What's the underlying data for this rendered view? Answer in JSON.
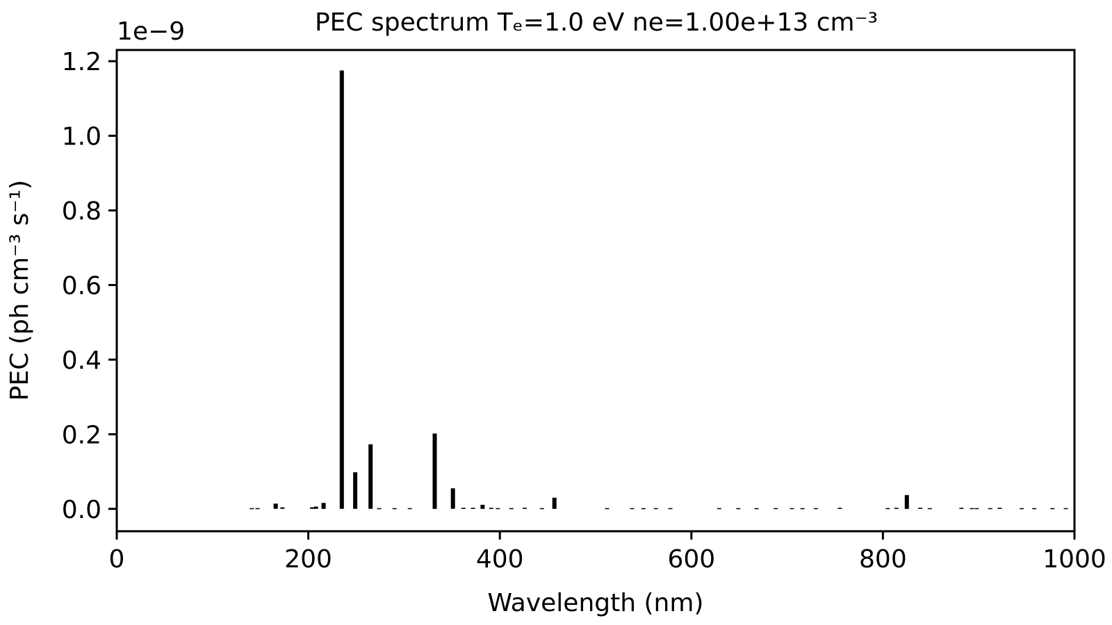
{
  "chart_data": {
    "type": "bar",
    "title": "PEC spectrum  Tₑ=1.0 eV  ne=1.00e+13 cm⁻³",
    "xlabel": "Wavelength (nm)",
    "ylabel": "PEC (ph cm⁻³ s⁻¹)",
    "offset_text": "1e−9",
    "xlim": [
      0,
      1000
    ],
    "ylim": [
      -0.06,
      1.23
    ],
    "x_ticks": [
      0,
      200,
      400,
      600,
      800,
      1000
    ],
    "x_tick_labels": [
      "0",
      "200",
      "400",
      "600",
      "800",
      "1000"
    ],
    "y_ticks": [
      0.0,
      0.2,
      0.4,
      0.6,
      0.8,
      1.0,
      1.2
    ],
    "y_tick_labels": [
      "0.0",
      "0.2",
      "0.4",
      "0.6",
      "0.8",
      "1.0",
      "1.2"
    ],
    "grid": false,
    "bar_color": "#000000",
    "series": [
      {
        "x": [
          141,
          147,
          166,
          173,
          204,
          208,
          216,
          235,
          249,
          265,
          274,
          290,
          306,
          332,
          351,
          362,
          372,
          382,
          391,
          398,
          412,
          426,
          444,
          457,
          512,
          538,
          550,
          563,
          578,
          629,
          649,
          668,
          688,
          705,
          716,
          730,
          755,
          805,
          814,
          825,
          839,
          849,
          882,
          893,
          898,
          912,
          922,
          945,
          958,
          977,
          991
        ],
        "values": [
          0.002,
          0.002,
          0.014,
          0.004,
          0.004,
          0.006,
          0.016,
          1.175,
          0.098,
          0.173,
          0.002,
          0.002,
          0.002,
          0.202,
          0.055,
          0.003,
          0.003,
          0.011,
          0.003,
          0.002,
          0.002,
          0.003,
          0.002,
          0.03,
          0.002,
          0.002,
          0.002,
          0.002,
          0.002,
          0.002,
          0.002,
          0.002,
          0.002,
          0.002,
          0.002,
          0.002,
          0.003,
          0.002,
          0.003,
          0.037,
          0.003,
          0.002,
          0.003,
          0.002,
          0.002,
          0.002,
          0.003,
          0.002,
          0.002,
          0.002,
          0.002
        ]
      }
    ]
  }
}
